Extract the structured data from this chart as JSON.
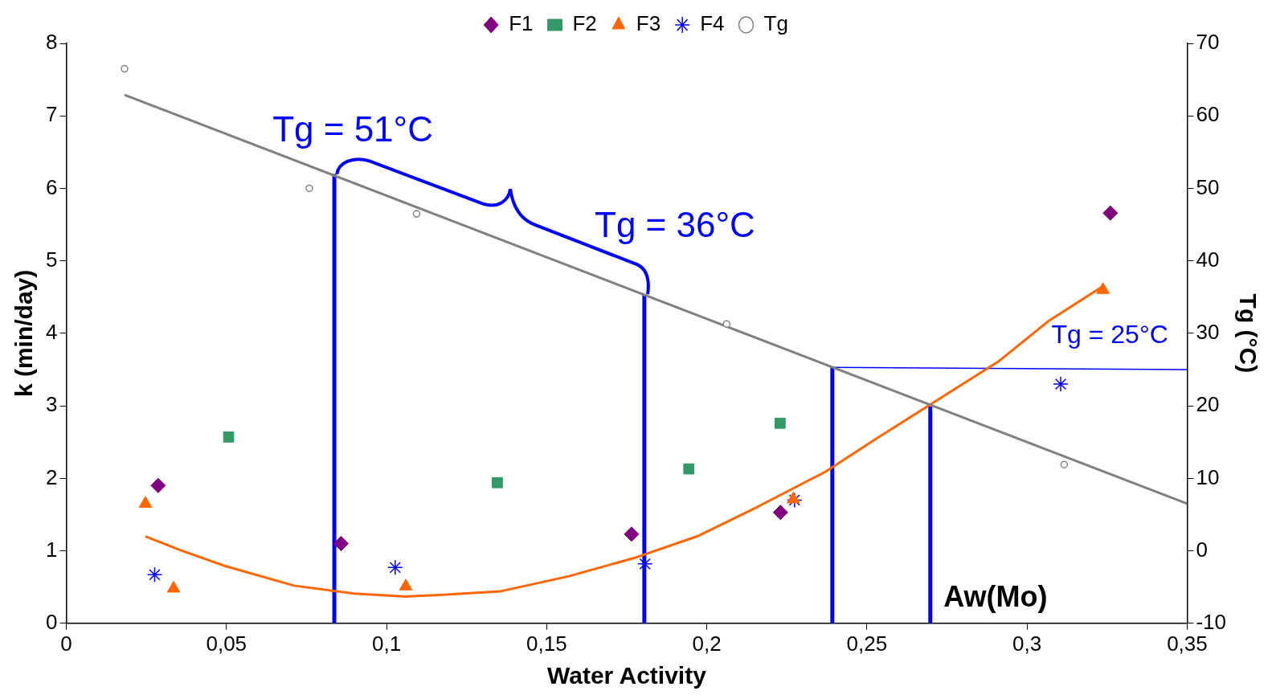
{
  "chart_data": {
    "type": "scatter",
    "xlabel": "Water Activity",
    "ylabel": "k (min/day)",
    "y2label": "Tg (°C)",
    "xlim": [
      0,
      0.35
    ],
    "xticks": [
      0,
      {
        "value": 0.05,
        "label": "0,05"
      },
      {
        "value": 0.1,
        "label": "0,1"
      },
      {
        "value": 0.15,
        "label": "0,15"
      },
      {
        "value": 0.2,
        "label": "0,2"
      },
      {
        "value": 0.25,
        "label": "0,25"
      },
      {
        "value": 0.3,
        "label": "0,3"
      },
      {
        "value": 0.35,
        "label": "0,35"
      }
    ],
    "ylim": [
      0,
      8
    ],
    "yticks": [
      0,
      1,
      2,
      3,
      4,
      5,
      6,
      7,
      8
    ],
    "y2lim": [
      -10,
      70
    ],
    "y2ticks": [
      -10,
      0,
      10,
      20,
      30,
      40,
      50,
      60,
      70
    ],
    "legend": "top",
    "series": [
      {
        "name": "F1",
        "type": "scatter",
        "marker": "diamond",
        "color": "#800080",
        "x": [
          0.0287,
          0.0858,
          0.1765,
          0.223,
          0.326
        ],
        "values": [
          1.9,
          1.1,
          1.23,
          1.53,
          5.66
        ]
      },
      {
        "name": "F2",
        "type": "scatter",
        "marker": "square",
        "color": "#339966",
        "x": [
          0.0507,
          0.1346,
          0.1944,
          0.2229
        ],
        "values": [
          2.57,
          1.94,
          2.13,
          2.76
        ]
      },
      {
        "name": "F3",
        "type": "scatter",
        "marker": "triangle",
        "color": "#ff6600",
        "x": [
          0.0247,
          0.0335,
          0.106,
          0.227,
          0.3237
        ],
        "values": [
          1.65,
          0.48,
          0.51,
          1.71,
          4.6
        ]
      },
      {
        "name": "F4",
        "type": "scatter",
        "marker": "cross",
        "color": "#0000ff",
        "x": [
          0.0276,
          0.1027,
          0.1807,
          0.2274,
          0.3105
        ],
        "values": [
          0.67,
          0.77,
          0.82,
          1.7,
          3.3
        ]
      },
      {
        "name": "Tg",
        "type": "scatter",
        "marker": "circle",
        "axis": "y2",
        "color": "#808080",
        "x": [
          0.0182,
          0.0759,
          0.1094,
          0.2062,
          0.3116
        ],
        "values": [
          66.5,
          50,
          46.5,
          31.3,
          11.9
        ]
      },
      {
        "type": "line",
        "marker": "none",
        "axis": "y2",
        "color": "#808080",
        "x": [
          0.0182,
          0.35
        ],
        "values": [
          62.9,
          6.5
        ]
      },
      {
        "type": "line",
        "marker": "none",
        "color": "#ff6600",
        "x": [
          0.0247,
          0.0362,
          0.0496,
          0.0711,
          0.0898,
          0.106,
          0.1167,
          0.1354,
          0.157,
          0.178,
          0.197,
          0.216,
          0.237,
          0.253,
          0.2695,
          0.291,
          0.307,
          0.3237
        ],
        "values": [
          1.2,
          1.0,
          0.79,
          0.52,
          0.41,
          0.37,
          0.39,
          0.44,
          0.65,
          0.91,
          1.2,
          1.61,
          2.09,
          2.55,
          3.01,
          3.61,
          4.18,
          4.65
        ]
      },
      {
        "type": "line",
        "marker": "none",
        "color": "#0000ff",
        "x": [
          0.0837,
          0.0837
        ],
        "values": [
          0,
          6.2
        ]
      },
      {
        "type": "line",
        "marker": "none",
        "color": "#0000ff",
        "x": [
          0.1805,
          0.1805
        ],
        "values": [
          0,
          4.54
        ]
      },
      {
        "type": "line",
        "marker": "none",
        "color": "#0000ff",
        "x": [
          0.2392,
          0.2392
        ],
        "values": [
          0,
          3.53
        ]
      },
      {
        "type": "line",
        "marker": "none",
        "color": "#0000ff",
        "x": [
          0.2698,
          0.2698
        ],
        "values": [
          0,
          2.99
        ]
      },
      {
        "type": "line",
        "marker": "none",
        "axis": "y2",
        "color": "#0000ff",
        "x": [
          0.2392,
          0.35
        ],
        "values": [
          25.3,
          25
        ]
      }
    ],
    "annotations": [
      {
        "text": "Tg = 51°C",
        "x": 0.0837,
        "y": 6.2
      },
      "Tg = 36°C",
      "Tg = 25°C",
      "Aw(Mo)"
    ]
  }
}
